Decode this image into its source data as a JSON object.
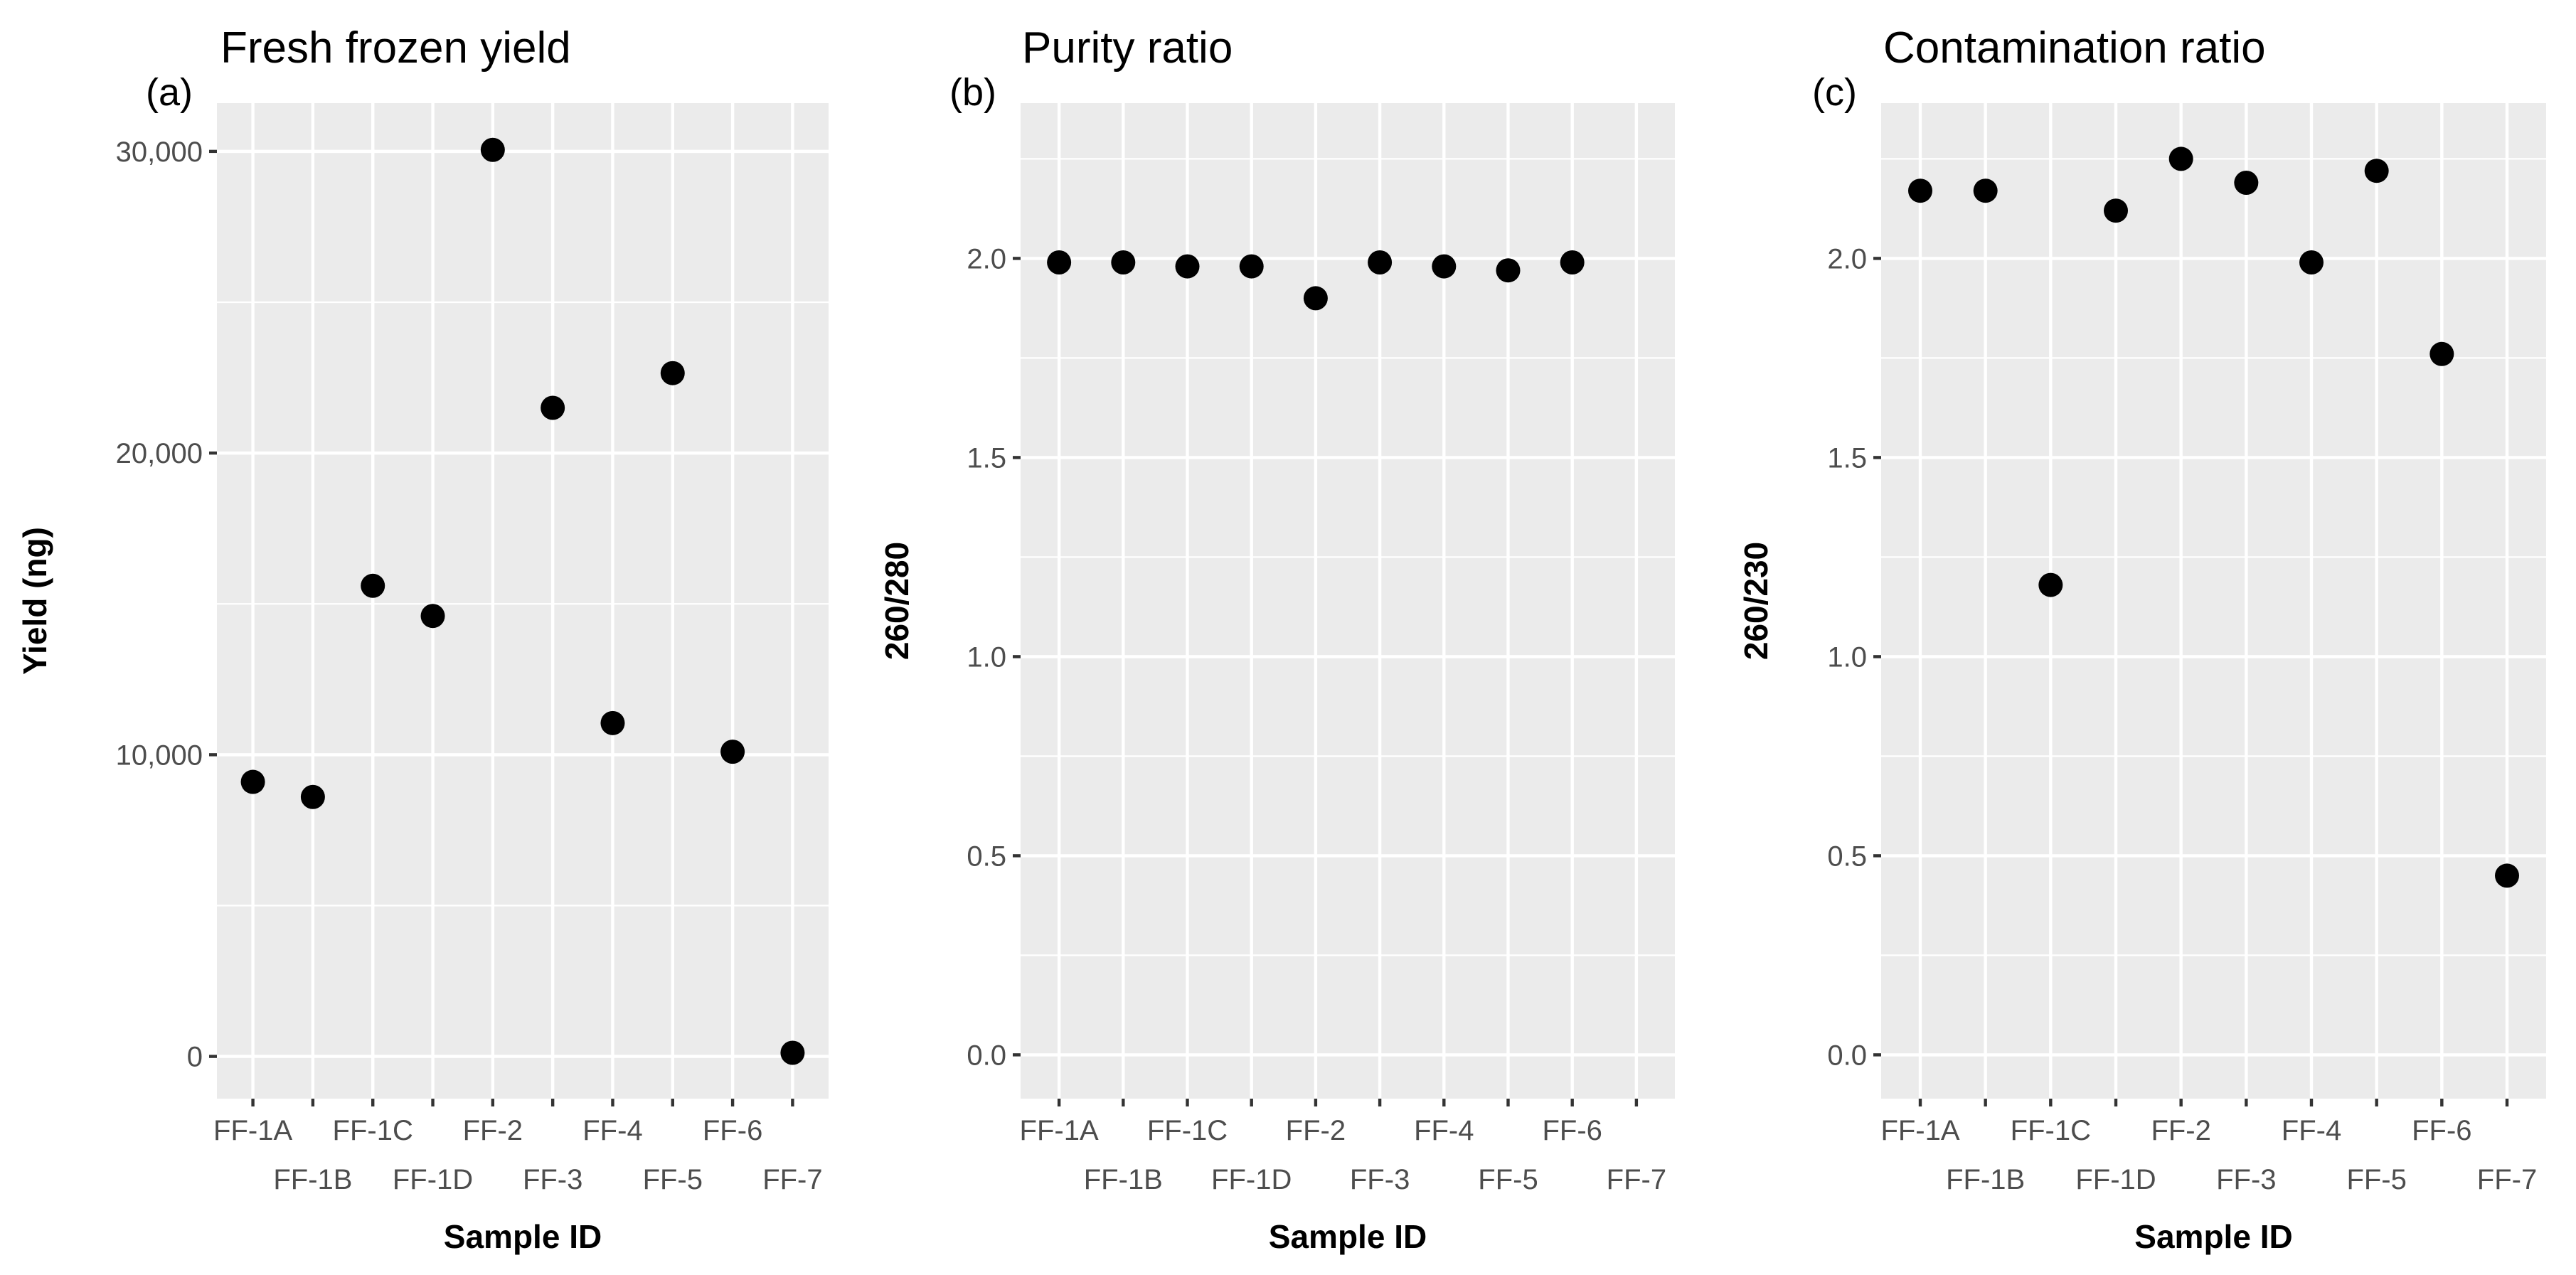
{
  "chart_data": [
    {
      "type": "scatter",
      "tag": "(a)",
      "title": "Fresh frozen yield",
      "xlabel": "Sample ID",
      "ylabel": "Yield (ng)",
      "categories": [
        "FF-1A",
        "FF-1B",
        "FF-1C",
        "FF-1D",
        "FF-2",
        "FF-3",
        "FF-4",
        "FF-5",
        "FF-6",
        "FF-7"
      ],
      "values": [
        9100,
        8600,
        15600,
        14600,
        30050,
        21500,
        11050,
        22650,
        10100,
        120
      ],
      "ylim": [
        -1400,
        31600
      ],
      "yticks": [
        0,
        10000,
        20000,
        30000
      ],
      "ytick_labels": [
        "0",
        "10,000",
        "20,000",
        "30,000"
      ],
      "grid": true
    },
    {
      "type": "scatter",
      "tag": "(b)",
      "title": "Purity ratio",
      "xlabel": "Sample ID",
      "ylabel": "260/280",
      "categories": [
        "FF-1A",
        "FF-1B",
        "FF-1C",
        "FF-1D",
        "FF-2",
        "FF-3",
        "FF-4",
        "FF-5",
        "FF-6",
        "FF-7"
      ],
      "values": [
        1.99,
        1.99,
        1.98,
        1.98,
        1.9,
        1.99,
        1.98,
        1.97,
        1.99,
        null
      ],
      "ylim": [
        -0.11,
        2.39
      ],
      "yticks": [
        0,
        0.5,
        1,
        1.5,
        2
      ],
      "ytick_labels": [
        "0.0",
        "0.5",
        "1.0",
        "1.5",
        "2.0"
      ],
      "grid": true
    },
    {
      "type": "scatter",
      "tag": "(c)",
      "title": "Contamination ratio",
      "xlabel": "Sample ID",
      "ylabel": "260/230",
      "categories": [
        "FF-1A",
        "FF-1B",
        "FF-1C",
        "FF-1D",
        "FF-2",
        "FF-3",
        "FF-4",
        "FF-5",
        "FF-6",
        "FF-7"
      ],
      "values": [
        2.17,
        2.17,
        1.18,
        2.12,
        2.25,
        2.19,
        1.99,
        2.22,
        1.76,
        0.45
      ],
      "ylim": [
        -0.11,
        2.39
      ],
      "yticks": [
        0,
        0.5,
        1,
        1.5,
        2
      ],
      "ytick_labels": [
        "0.0",
        "0.5",
        "1.0",
        "1.5",
        "2.0"
      ],
      "grid": true
    }
  ]
}
